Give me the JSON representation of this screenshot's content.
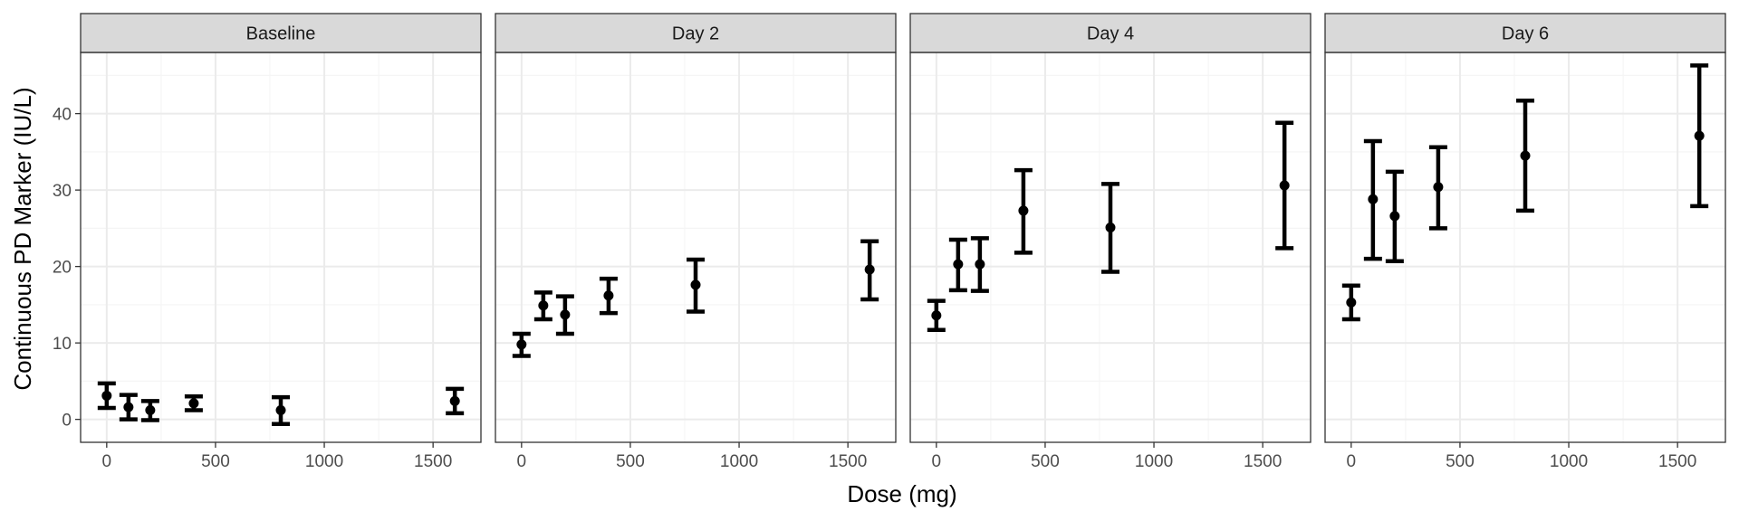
{
  "chart_data": {
    "type": "scatter",
    "subtype": "faceted-errorbar",
    "xlabel": "Dose (mg)",
    "ylabel": "Continuous PD Marker (IU/L)",
    "xlim": [
      -120,
      1720
    ],
    "ylim": [
      -3,
      48
    ],
    "x_ticks": [
      0,
      500,
      1000,
      1500
    ],
    "y_ticks": [
      0,
      10,
      20,
      30,
      40
    ],
    "grid": true,
    "colors": {
      "panel_background": "#ffffff",
      "strip_fill": "#d9d9d9",
      "border": "#333333",
      "grid_major": "#ebebeb",
      "grid_minor": "#f5f5f5",
      "marks": "#000000"
    },
    "panels": [
      {
        "title": "Baseline",
        "points": [
          {
            "x": 0,
            "y": 3.1,
            "ymin": 1.5,
            "ymax": 4.7
          },
          {
            "x": 100,
            "y": 1.6,
            "ymin": 0.0,
            "ymax": 3.2
          },
          {
            "x": 200,
            "y": 1.2,
            "ymin": -0.1,
            "ymax": 2.4
          },
          {
            "x": 400,
            "y": 2.1,
            "ymin": 1.2,
            "ymax": 3.0
          },
          {
            "x": 800,
            "y": 1.2,
            "ymin": -0.6,
            "ymax": 2.9
          },
          {
            "x": 1600,
            "y": 2.4,
            "ymin": 0.8,
            "ymax": 4.0
          }
        ]
      },
      {
        "title": "Day 2",
        "points": [
          {
            "x": 0,
            "y": 9.8,
            "ymin": 8.3,
            "ymax": 11.2
          },
          {
            "x": 100,
            "y": 14.9,
            "ymin": 13.1,
            "ymax": 16.6
          },
          {
            "x": 200,
            "y": 13.7,
            "ymin": 11.2,
            "ymax": 16.1
          },
          {
            "x": 400,
            "y": 16.2,
            "ymin": 13.9,
            "ymax": 18.4
          },
          {
            "x": 800,
            "y": 17.6,
            "ymin": 14.1,
            "ymax": 20.9
          },
          {
            "x": 1600,
            "y": 19.6,
            "ymin": 15.7,
            "ymax": 23.3
          }
        ]
      },
      {
        "title": "Day 4",
        "points": [
          {
            "x": 0,
            "y": 13.6,
            "ymin": 11.7,
            "ymax": 15.5
          },
          {
            "x": 100,
            "y": 20.3,
            "ymin": 16.9,
            "ymax": 23.5
          },
          {
            "x": 200,
            "y": 20.3,
            "ymin": 16.8,
            "ymax": 23.7
          },
          {
            "x": 400,
            "y": 27.3,
            "ymin": 21.8,
            "ymax": 32.6
          },
          {
            "x": 800,
            "y": 25.1,
            "ymin": 19.3,
            "ymax": 30.8
          },
          {
            "x": 1600,
            "y": 30.6,
            "ymin": 22.4,
            "ymax": 38.8
          }
        ]
      },
      {
        "title": "Day 6",
        "points": [
          {
            "x": 0,
            "y": 15.3,
            "ymin": 13.1,
            "ymax": 17.5
          },
          {
            "x": 100,
            "y": 28.8,
            "ymin": 21.0,
            "ymax": 36.4
          },
          {
            "x": 200,
            "y": 26.6,
            "ymin": 20.7,
            "ymax": 32.4
          },
          {
            "x": 400,
            "y": 30.4,
            "ymin": 25.0,
            "ymax": 35.6
          },
          {
            "x": 800,
            "y": 34.5,
            "ymin": 27.3,
            "ymax": 41.7
          },
          {
            "x": 1600,
            "y": 37.1,
            "ymin": 27.9,
            "ymax": 46.3
          }
        ]
      }
    ]
  }
}
